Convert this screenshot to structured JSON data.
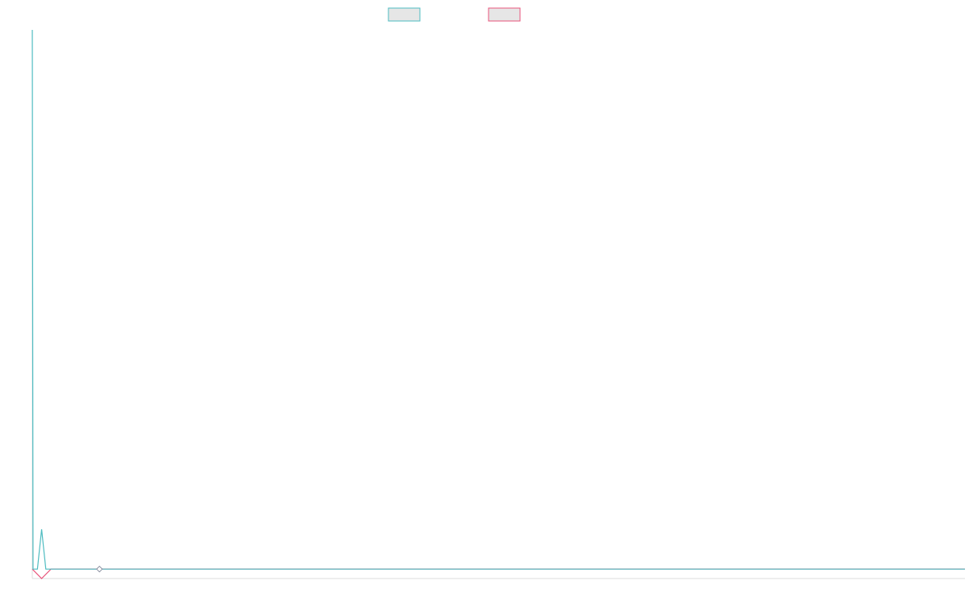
{
  "colors": {
    "series_1": "#4fbcc1",
    "series_2": "#e8567c",
    "legend_fill": "#e6e6e6",
    "axis": "#dddddd"
  },
  "chart_data": {
    "type": "line",
    "title": "",
    "xlabel": "",
    "ylabel": "",
    "grid": false,
    "legend": "top-center",
    "x": [
      0,
      1,
      2,
      3,
      4,
      5,
      6,
      7,
      8,
      9,
      10,
      11,
      12,
      13,
      14,
      15,
      16,
      17,
      18,
      19,
      20,
      21,
      22,
      23,
      24,
      25,
      26,
      27,
      28,
      29,
      30,
      31,
      32,
      33,
      34,
      35,
      36,
      37,
      38,
      39,
      40,
      41,
      42,
      43,
      44,
      45,
      46,
      47,
      48,
      49,
      50,
      51,
      52,
      53,
      54,
      55,
      56,
      57,
      58,
      59,
      60,
      61,
      62,
      63,
      64,
      65,
      66,
      67,
      68,
      69,
      70,
      71,
      72,
      73,
      74,
      75,
      76,
      77,
      78,
      79,
      80,
      81,
      82,
      83,
      84,
      85,
      86,
      87,
      88,
      89,
      90,
      91,
      92,
      93,
      94,
      95,
      96,
      97,
      98,
      99,
      100
    ],
    "xlim": [
      0,
      100
    ],
    "ylim": [
      -1,
      57
    ],
    "series": [
      {
        "name": "",
        "color": "#4fbcc1",
        "values": [
          57,
          0,
          0,
          0,
          0,
          0,
          0,
          0,
          0,
          0,
          0,
          0,
          0,
          0,
          0,
          0,
          0,
          0,
          0,
          0,
          0,
          0,
          0,
          0,
          0,
          0,
          0,
          0,
          0,
          0,
          0,
          0,
          0,
          0,
          0,
          0,
          0,
          0,
          0,
          0,
          0,
          0,
          0,
          0,
          0,
          0,
          0,
          0,
          0,
          0,
          0,
          0,
          0,
          0,
          0,
          0,
          0,
          0,
          0,
          0,
          0,
          0,
          0,
          0,
          0,
          0,
          0,
          0,
          0,
          0,
          0,
          0,
          0,
          0,
          0,
          0,
          0,
          0,
          0,
          0,
          0,
          0,
          0,
          0,
          0,
          0,
          0,
          0,
          0,
          0,
          0,
          0,
          0,
          0,
          0,
          0,
          0,
          0,
          0,
          0,
          0
        ],
        "spike": {
          "x": 1,
          "y": 4.2
        }
      },
      {
        "name": "",
        "color": "#e8567c",
        "values": [
          0,
          0,
          0,
          0,
          0,
          0,
          0,
          0,
          0,
          0,
          0,
          0,
          0,
          0,
          0,
          0,
          0,
          0,
          0,
          0,
          0,
          0,
          0,
          0,
          0,
          0,
          0,
          0,
          0,
          0,
          0,
          0,
          0,
          0,
          0,
          0,
          0,
          0,
          0,
          0,
          0,
          0,
          0,
          0,
          0,
          0,
          0,
          0,
          0,
          0,
          0,
          0,
          0,
          0,
          0,
          0,
          0,
          0,
          0,
          0,
          0,
          0,
          0,
          0,
          0,
          0,
          0,
          0,
          0,
          0,
          0,
          0,
          0,
          0,
          0,
          0,
          0,
          0,
          0,
          0,
          0,
          0,
          0,
          0,
          0,
          0,
          0,
          0,
          0,
          0,
          0,
          0,
          0,
          0,
          0,
          0,
          0,
          0,
          0,
          0,
          0
        ],
        "dip": {
          "x": 1,
          "y": -1
        }
      }
    ],
    "marker": {
      "x": 7.2,
      "y": 0
    }
  }
}
